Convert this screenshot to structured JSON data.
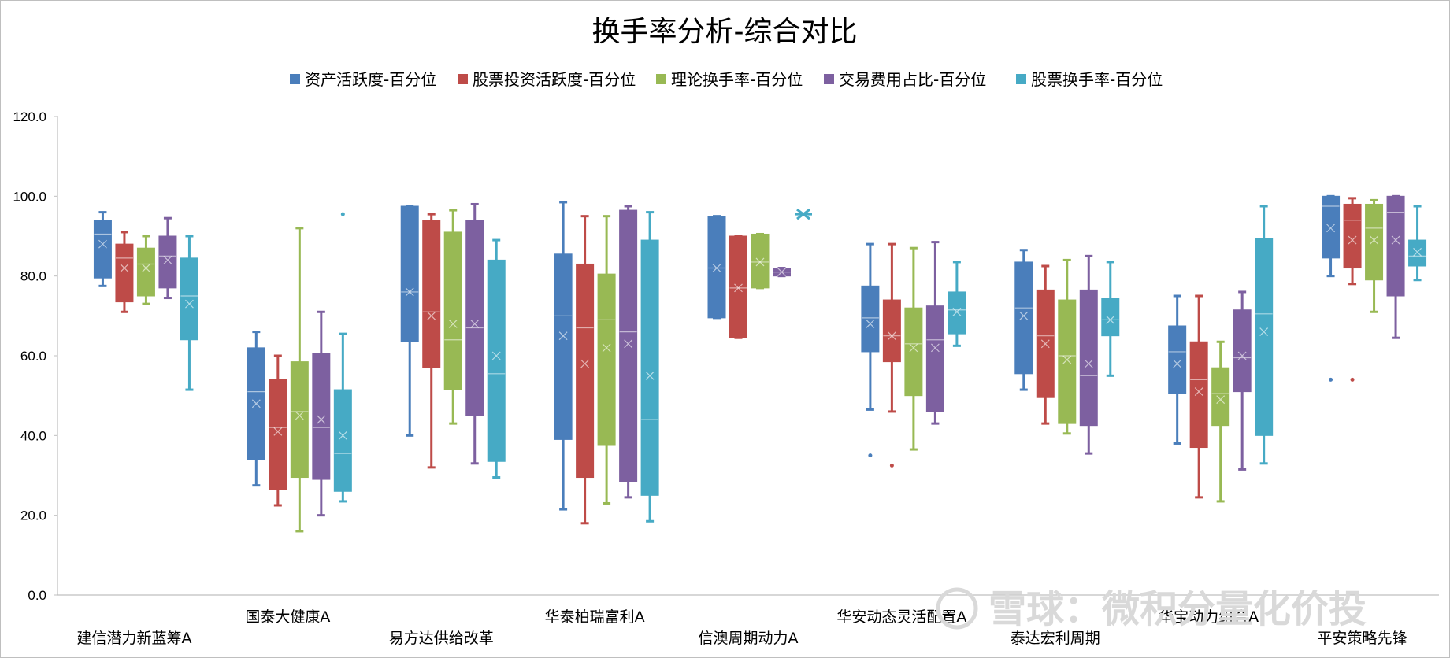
{
  "chart_data": {
    "type": "box",
    "title": "换手率分析-综合对比",
    "xlabel": "",
    "ylabel": "",
    "ylim": [
      0,
      120
    ],
    "yticks": [
      "0.0",
      "20.0",
      "40.0",
      "60.0",
      "80.0",
      "100.0",
      "120.0"
    ],
    "grid": false,
    "legend_position": "top",
    "series": [
      {
        "name": "资产活跃度-百分位",
        "color": "#4a7ebb"
      },
      {
        "name": "股票投资活跃度-百分位",
        "color": "#be4b48"
      },
      {
        "name": "理论换手率-百分位",
        "color": "#98b954"
      },
      {
        "name": "交易费用占比-百分位",
        "color": "#7d60a0"
      },
      {
        "name": "股票换手率-百分位",
        "color": "#46aac5"
      }
    ],
    "categories": [
      "建信潜力新蓝筹A",
      "国泰大健康A",
      "易方达供给改革",
      "华泰柏瑞富利A",
      "信澳周期动力A",
      "华安动态灵活配置A",
      "泰达宏利周期",
      "华宝动力组合A",
      "平安策略先锋"
    ],
    "boxes": [
      [
        {
          "min": 77.5,
          "q1": 79.5,
          "median": 90.5,
          "q3": 94.0,
          "max": 96.0,
          "mean": 88.0,
          "outliers": []
        },
        {
          "min": 71.0,
          "q1": 73.5,
          "median": 84.5,
          "q3": 88.0,
          "max": 91.0,
          "mean": 82.0,
          "outliers": []
        },
        {
          "min": 73.0,
          "q1": 75.0,
          "median": 83.0,
          "q3": 87.0,
          "max": 90.0,
          "mean": 82.0,
          "outliers": []
        },
        {
          "min": 74.5,
          "q1": 77.0,
          "median": 85.0,
          "q3": 90.0,
          "max": 94.5,
          "mean": 84.0,
          "outliers": []
        },
        {
          "min": 51.5,
          "q1": 64.0,
          "median": 75.0,
          "q3": 84.5,
          "max": 90.0,
          "mean": 73.0,
          "outliers": []
        }
      ],
      [
        {
          "min": 27.5,
          "q1": 34.0,
          "median": 51.0,
          "q3": 62.0,
          "max": 66.0,
          "mean": 48.0,
          "outliers": []
        },
        {
          "min": 22.5,
          "q1": 26.5,
          "median": 42.0,
          "q3": 54.0,
          "max": 60.0,
          "mean": 41.0,
          "outliers": []
        },
        {
          "min": 16.0,
          "q1": 29.5,
          "median": 46.0,
          "q3": 58.5,
          "max": 92.0,
          "mean": 45.0,
          "outliers": []
        },
        {
          "min": 20.0,
          "q1": 29.0,
          "median": 42.0,
          "q3": 60.5,
          "max": 71.0,
          "mean": 44.0,
          "outliers": []
        },
        {
          "min": 23.5,
          "q1": 26.0,
          "median": 35.5,
          "q3": 51.5,
          "max": 65.5,
          "mean": 40.0,
          "outliers": [
            95.5
          ]
        }
      ],
      [
        {
          "min": 40.0,
          "q1": 63.5,
          "median": 76.0,
          "q3": 97.5,
          "max": 97.5,
          "mean": 76.0,
          "outliers": []
        },
        {
          "min": 32.0,
          "q1": 57.0,
          "median": 71.0,
          "q3": 94.0,
          "max": 95.5,
          "mean": 70.0,
          "outliers": []
        },
        {
          "min": 43.0,
          "q1": 51.5,
          "median": 64.0,
          "q3": 91.0,
          "max": 96.5,
          "mean": 68.0,
          "outliers": []
        },
        {
          "min": 33.0,
          "q1": 45.0,
          "median": 67.0,
          "q3": 94.0,
          "max": 98.0,
          "mean": 68.0,
          "outliers": []
        },
        {
          "min": 29.5,
          "q1": 33.5,
          "median": 55.5,
          "q3": 84.0,
          "max": 89.0,
          "mean": 60.0,
          "outliers": []
        }
      ],
      [
        {
          "min": 21.5,
          "q1": 39.0,
          "median": 70.0,
          "q3": 85.5,
          "max": 98.5,
          "mean": 65.0,
          "outliers": []
        },
        {
          "min": 18.0,
          "q1": 29.5,
          "median": 67.0,
          "q3": 83.0,
          "max": 95.0,
          "mean": 58.0,
          "outliers": []
        },
        {
          "min": 23.0,
          "q1": 37.5,
          "median": 69.0,
          "q3": 80.5,
          "max": 95.0,
          "mean": 62.0,
          "outliers": []
        },
        {
          "min": 24.5,
          "q1": 28.5,
          "median": 66.0,
          "q3": 96.5,
          "max": 97.5,
          "mean": 63.0,
          "outliers": []
        },
        {
          "min": 18.5,
          "q1": 25.0,
          "median": 44.0,
          "q3": 89.0,
          "max": 96.0,
          "mean": 55.0,
          "outliers": []
        }
      ],
      [
        {
          "min": 69.5,
          "q1": 69.5,
          "median": 82.0,
          "q3": 95.0,
          "max": 95.0,
          "mean": 82.0,
          "outliers": []
        },
        {
          "min": 64.5,
          "q1": 64.5,
          "median": 77.0,
          "q3": 90.0,
          "max": 90.0,
          "mean": 77.0,
          "outliers": []
        },
        {
          "min": 77.0,
          "q1": 77.0,
          "median": 83.5,
          "q3": 90.5,
          "max": 90.5,
          "mean": 83.5,
          "outliers": []
        },
        {
          "min": 80.0,
          "q1": 80.0,
          "median": 81.0,
          "q3": 82.0,
          "max": 82.0,
          "mean": 81.0,
          "outliers": []
        },
        {
          "min": 95.5,
          "q1": 95.5,
          "median": 95.5,
          "q3": 95.5,
          "max": 95.5,
          "mean": 95.5,
          "outliers": []
        }
      ],
      [
        {
          "min": 46.5,
          "q1": 61.0,
          "median": 69.5,
          "q3": 77.5,
          "max": 88.0,
          "mean": 68.0,
          "outliers": [
            35.0
          ]
        },
        {
          "min": 46.0,
          "q1": 58.5,
          "median": 65.0,
          "q3": 74.0,
          "max": 88.0,
          "mean": 65.0,
          "outliers": [
            32.5
          ]
        },
        {
          "min": 36.5,
          "q1": 50.0,
          "median": 63.0,
          "q3": 72.0,
          "max": 87.0,
          "mean": 62.0,
          "outliers": []
        },
        {
          "min": 43.0,
          "q1": 46.0,
          "median": 64.0,
          "q3": 72.5,
          "max": 88.5,
          "mean": 62.0,
          "outliers": []
        },
        {
          "min": 62.5,
          "q1": 65.5,
          "median": 71.5,
          "q3": 76.0,
          "max": 83.5,
          "mean": 71.0,
          "outliers": []
        }
      ],
      [
        {
          "min": 51.5,
          "q1": 55.5,
          "median": 72.0,
          "q3": 83.5,
          "max": 86.5,
          "mean": 70.0,
          "outliers": []
        },
        {
          "min": 43.0,
          "q1": 49.5,
          "median": 65.0,
          "q3": 76.5,
          "max": 82.5,
          "mean": 63.0,
          "outliers": []
        },
        {
          "min": 40.5,
          "q1": 43.0,
          "median": 60.0,
          "q3": 74.0,
          "max": 84.0,
          "mean": 59.0,
          "outliers": []
        },
        {
          "min": 35.5,
          "q1": 42.5,
          "median": 55.0,
          "q3": 76.5,
          "max": 85.0,
          "mean": 58.0,
          "outliers": []
        },
        {
          "min": 55.0,
          "q1": 65.0,
          "median": 69.0,
          "q3": 74.5,
          "max": 83.5,
          "mean": 69.0,
          "outliers": []
        }
      ],
      [
        {
          "min": 38.0,
          "q1": 50.5,
          "median": 61.0,
          "q3": 67.5,
          "max": 75.0,
          "mean": 58.0,
          "outliers": []
        },
        {
          "min": 24.5,
          "q1": 37.0,
          "median": 54.0,
          "q3": 63.5,
          "max": 75.0,
          "mean": 51.0,
          "outliers": []
        },
        {
          "min": 23.5,
          "q1": 42.5,
          "median": 50.5,
          "q3": 57.0,
          "max": 63.5,
          "mean": 49.0,
          "outliers": []
        },
        {
          "min": 31.5,
          "q1": 51.0,
          "median": 59.5,
          "q3": 71.5,
          "max": 76.0,
          "mean": 60.0,
          "outliers": []
        },
        {
          "min": 33.0,
          "q1": 40.0,
          "median": 70.5,
          "q3": 89.5,
          "max": 97.5,
          "mean": 66.0,
          "outliers": []
        }
      ],
      [
        {
          "min": 80.0,
          "q1": 84.5,
          "median": 97.5,
          "q3": 100.0,
          "max": 100.0,
          "mean": 92.0,
          "outliers": [
            54.0
          ]
        },
        {
          "min": 78.0,
          "q1": 82.0,
          "median": 94.0,
          "q3": 98.0,
          "max": 99.5,
          "mean": 89.0,
          "outliers": [
            54.0
          ]
        },
        {
          "min": 71.0,
          "q1": 79.0,
          "median": 92.0,
          "q3": 98.0,
          "max": 99.0,
          "mean": 89.0,
          "outliers": []
        },
        {
          "min": 64.5,
          "q1": 75.0,
          "median": 96.0,
          "q3": 100.0,
          "max": 100.0,
          "mean": 89.0,
          "outliers": []
        },
        {
          "min": 79.0,
          "q1": 82.5,
          "median": 85.0,
          "q3": 89.0,
          "max": 97.5,
          "mean": 86.0,
          "outliers": []
        }
      ]
    ]
  },
  "watermark": {
    "text": "雪球：微积分量化价投"
  }
}
